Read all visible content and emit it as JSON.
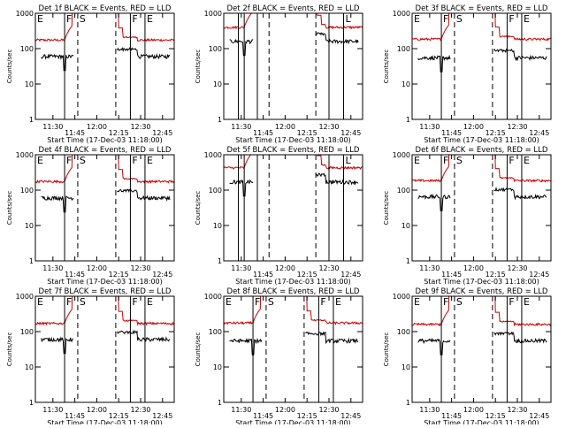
{
  "page": {
    "background": "#ffffff"
  },
  "chart_data": {
    "type": "line",
    "grid_rows": 3,
    "grid_cols": 3,
    "ylim": [
      1,
      1000
    ],
    "xlim_minutes": [
      0,
      95
    ],
    "y_scale": "log",
    "ylabel": "Counts/sec",
    "xlabel": "Start Time (17-Dec-03 11:18:00)",
    "x_ticks": {
      "labels": [
        "11:30",
        "11:45",
        "12:00",
        "12:15",
        "12:30",
        "12:45"
      ],
      "minutes": [
        12,
        27,
        42,
        57,
        72,
        87
      ]
    },
    "y_ticks": {
      "labels": [
        "1",
        "10",
        "100",
        "1000"
      ],
      "values": [
        1,
        10,
        100,
        1000
      ]
    },
    "series_colors": {
      "events": "#000000",
      "lld": "#cc0000"
    },
    "markers": [
      {
        "label": "E",
        "minute": 0,
        "style": "solid"
      },
      {
        "label": "F",
        "minute": 20,
        "style": "solid"
      },
      {
        "label": "S",
        "minute": 29,
        "style": "dashed"
      },
      {
        "label": "",
        "minute": 55,
        "style": "dashed"
      },
      {
        "label": "F",
        "minute": 65,
        "style": "solid"
      },
      {
        "label": "E",
        "minute": 75,
        "style": "solid"
      }
    ],
    "panels": [
      {
        "title": "Det 1f BLACK = Events, RED = LLD",
        "base_lld": 175,
        "base_ev": 60
      },
      {
        "title": "Det 2f BLACK = Events, RED = LLD",
        "base_lld": 400,
        "base_ev": 160,
        "markers": [
          {
            "label": "",
            "minute": 10,
            "style": "solid"
          },
          {
            "label": "",
            "minute": 14,
            "style": "solid"
          },
          {
            "label": "",
            "minute": 23,
            "style": "solid"
          },
          {
            "label": "",
            "minute": 31,
            "style": "dashed"
          },
          {
            "label": "",
            "minute": 63,
            "style": "dashed"
          },
          {
            "label": "",
            "minute": 72,
            "style": "solid"
          },
          {
            "label": "L",
            "minute": 82,
            "style": "solid"
          }
        ]
      },
      {
        "title": "Det 3f BLACK = Events, RED = LLD",
        "base_lld": 185,
        "base_ev": 55
      },
      {
        "title": "Det 4f BLACK = Events, RED = LLD",
        "base_lld": 175,
        "base_ev": 60
      },
      {
        "title": "Det 5f BLACK = Events, RED = LLD",
        "base_lld": 430,
        "base_ev": 170,
        "markers": [
          {
            "label": "",
            "minute": 10,
            "style": "solid"
          },
          {
            "label": "",
            "minute": 14,
            "style": "solid"
          },
          {
            "label": "",
            "minute": 23,
            "style": "solid"
          },
          {
            "label": "",
            "minute": 31,
            "style": "dashed"
          },
          {
            "label": "",
            "minute": 63,
            "style": "dashed"
          },
          {
            "label": "",
            "minute": 72,
            "style": "solid"
          },
          {
            "label": "L",
            "minute": 82,
            "style": "solid"
          }
        ]
      },
      {
        "title": "Det 6f BLACK = Events, RED = LLD",
        "base_lld": 185,
        "base_ev": 65
      },
      {
        "title": "Det 7f BLACK = Events, RED = LLD",
        "base_lld": 170,
        "base_ev": 60
      },
      {
        "title": "Det 8f BLACK = Events, RED = LLD",
        "base_lld": 175,
        "base_ev": 55
      },
      {
        "title": "Det 9f BLACK = Events, RED = LLD",
        "base_lld": 160,
        "base_ev": 55
      }
    ]
  }
}
